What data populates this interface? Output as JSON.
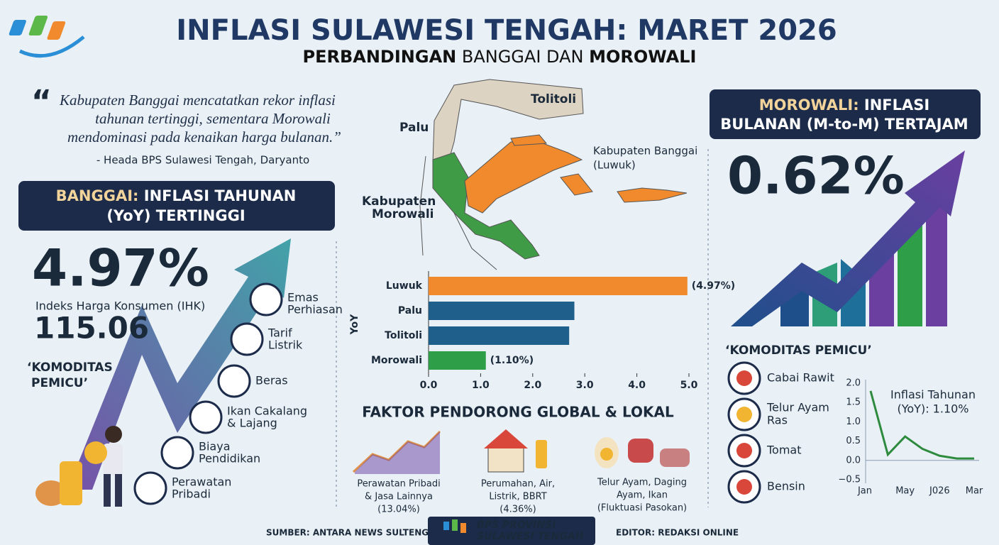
{
  "header": {
    "title": "INFLASI SULAWESI   TENGAH: MARET 2026",
    "subtitle": [
      "PERBANDINGAN",
      "BANGGAI DAN",
      "MOROWALI"
    ]
  },
  "quote": {
    "lines": [
      "Kabupaten Banggai mencatatkan rekor inflasi",
      "tahunan tertinggi, sementara Morowali",
      "mendominasi pada kenaikan harga bulanan.”"
    ],
    "attribution": "- Heada BPS Sulawesi Tengah, Daryanto"
  },
  "banggai": {
    "heading": [
      "BANGGAI:",
      "INFLASI TAHUNAN",
      "(YoY) TERTINGGI"
    ],
    "value": "4.97%",
    "ihk_label": "Indeks Harga Konsumen (IHK)",
    "ihk_value": "115.06",
    "commodities_title": [
      "‘KOMODITAS",
      "PEMICU’"
    ],
    "commodities": [
      [
        "Emas",
        "Perhiasan"
      ],
      [
        "Tarif",
        "Listrik"
      ],
      [
        "Beras"
      ],
      [
        "Ikan Cakalang",
        "& Lajang"
      ],
      [
        "Biaya",
        "Pendidikan"
      ],
      [
        "Perawatan",
        "Pribadi"
      ]
    ]
  },
  "map": {
    "labels": [
      [
        "Tolitoli"
      ],
      [
        "Palu"
      ],
      [
        "Kabupaten Banggai",
        "(Luwuk)"
      ],
      [
        "Kabupaten",
        "Morowali"
      ]
    ]
  },
  "chart_data": [
    {
      "type": "hbar",
      "categories": [
        "Luwuk",
        "Palu",
        "Tolitoli",
        "Morowali"
      ],
      "values": [
        4.97,
        2.8,
        2.7,
        1.1
      ],
      "value_labels": [
        "(4.97%)",
        null,
        null,
        "(1.10%)"
      ],
      "colors": [
        "#f08a2c",
        "#1f5f8b",
        "#1f5f8b",
        "#2e9e48"
      ],
      "ylabel": "YoY",
      "xlim": [
        0,
        5
      ],
      "xticks": [
        {
          "value": 0,
          "label": "0.0"
        },
        {
          "value": 1,
          "label": "1.0"
        },
        {
          "value": 2,
          "label": "2.0"
        },
        {
          "value": 3,
          "label": "3.0"
        },
        {
          "value": 4,
          "label": "4.0"
        },
        {
          "value": 5,
          "label": "5.0"
        }
      ]
    },
    {
      "type": "line",
      "categories": [
        "Jan",
        null,
        "May",
        null,
        "J026",
        null,
        "Mar"
      ],
      "values": [
        1.8,
        0.15,
        0.62,
        0.3,
        0.12,
        0.05,
        0.05
      ],
      "color": "#2e8b3e",
      "annotation": [
        "Inflasi Tahunan",
        "(YoY): 1.10%"
      ],
      "ylim": [
        -0.5,
        2
      ],
      "yticks": [
        {
          "value": -0.5,
          "label": "−0.5"
        },
        {
          "value": 0,
          "label": "0.0"
        },
        {
          "value": 0.5,
          "label": "0.5"
        },
        {
          "value": 1,
          "label": "1.0"
        },
        {
          "value": 1.5,
          "label": "1.5"
        },
        {
          "value": 2,
          "label": "2.0"
        }
      ]
    }
  ],
  "factors": {
    "title": "FAKTOR PENDORONG GLOBAL & LOKAL",
    "items": [
      [
        "Perawatan Pribadi",
        "& Jasa Lainnya",
        "(13.04%)"
      ],
      [
        "Perumahan, Air,",
        "Listrik, BBRT",
        "(4.36%)"
      ],
      [
        "Telur Ayam, Daging",
        "Ayam, Ikan",
        "(Fluktuasi Pasokan)"
      ]
    ]
  },
  "morowali": {
    "heading": [
      "MOROWALI:",
      "INFLASI",
      "BULANAN (M-to-M) TERTAJAM"
    ],
    "value": "0.62%",
    "commodities_title": "‘KOMODITAS PEMICU’",
    "commodities": [
      [
        "Cabai Rawit"
      ],
      [
        "Telur Ayam",
        "Ras"
      ],
      [
        "Tomat"
      ],
      [
        "Bensin"
      ]
    ]
  },
  "footer": {
    "source": "SUMBER: ANTARA NEWS SULTENG",
    "logo": [
      "BPS PROVINSI",
      "SULAWESI TENGAH"
    ],
    "editor": "EDITOR: REDAKSI ONLINE"
  }
}
